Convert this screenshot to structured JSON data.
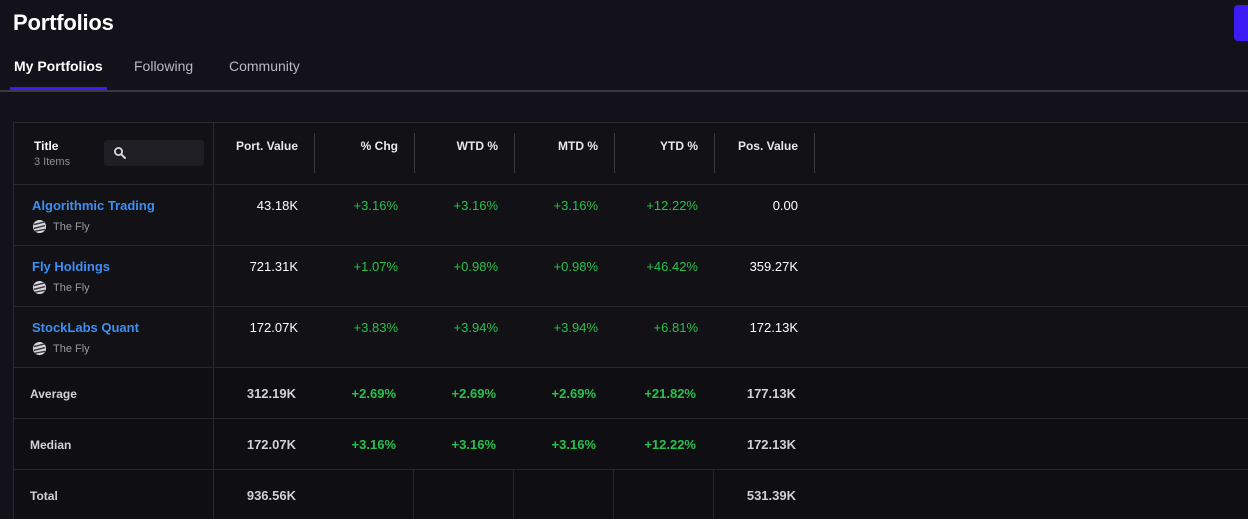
{
  "header": {
    "title": "Portfolios"
  },
  "tabs": [
    {
      "label": "My Portfolios",
      "active": true
    },
    {
      "label": "Following",
      "active": false
    },
    {
      "label": "Community",
      "active": false
    }
  ],
  "table": {
    "title_header": "Title",
    "items_count": "3 Items",
    "search_placeholder": "",
    "columns": [
      "Port. Value",
      "% Chg",
      "WTD %",
      "MTD %",
      "YTD %",
      "Pos. Value"
    ],
    "rows": [
      {
        "name": "Algorithmic Trading",
        "owner": "The Fly",
        "port_value": "43.18K",
        "pct_chg": "+3.16%",
        "wtd": "+3.16%",
        "mtd": "+3.16%",
        "ytd": "+12.22%",
        "pos_value": "0.00"
      },
      {
        "name": "Fly Holdings",
        "owner": "The Fly",
        "port_value": "721.31K",
        "pct_chg": "+1.07%",
        "wtd": "+0.98%",
        "mtd": "+0.98%",
        "ytd": "+46.42%",
        "pos_value": "359.27K"
      },
      {
        "name": "StockLabs Quant",
        "owner": "The Fly",
        "port_value": "172.07K",
        "pct_chg": "+3.83%",
        "wtd": "+3.94%",
        "mtd": "+3.94%",
        "ytd": "+6.81%",
        "pos_value": "172.13K"
      }
    ],
    "summary": [
      {
        "label": "Average",
        "port_value": "312.19K",
        "pct_chg": "+2.69%",
        "wtd": "+2.69%",
        "mtd": "+2.69%",
        "ytd": "+21.82%",
        "pos_value": "177.13K"
      },
      {
        "label": "Median",
        "port_value": "172.07K",
        "pct_chg": "+3.16%",
        "wtd": "+3.16%",
        "mtd": "+3.16%",
        "ytd": "+12.22%",
        "pos_value": "172.13K"
      },
      {
        "label": "Total",
        "port_value": "936.56K",
        "pct_chg": "",
        "wtd": "",
        "mtd": "",
        "ytd": "",
        "pos_value": "531.39K"
      }
    ]
  },
  "icons": {
    "search": "search-icon",
    "owner_logo": "the-fly-logo-icon"
  },
  "colors": {
    "accent": "#3b1cf5",
    "link": "#3e8ff0",
    "positive": "#27c24c",
    "background": "#13121a"
  }
}
